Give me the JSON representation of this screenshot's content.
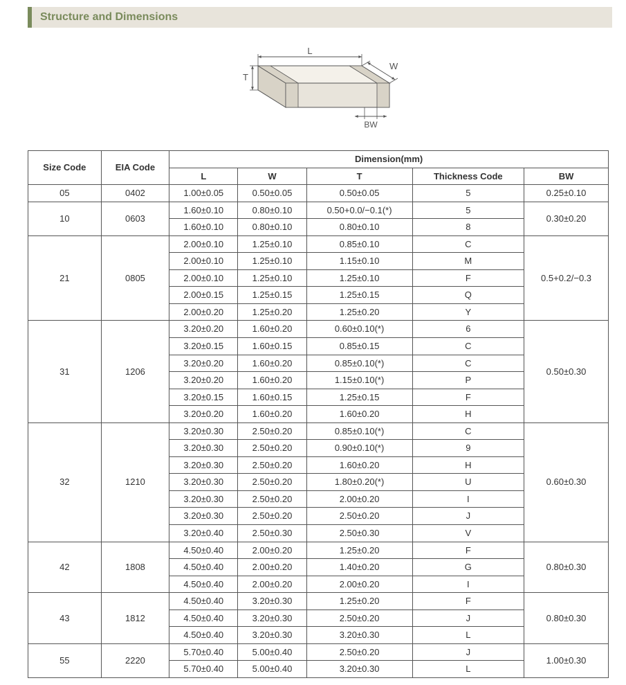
{
  "title": "Structure and Dimensions",
  "diagram": {
    "labels": {
      "L": "L",
      "W": "W",
      "T": "T",
      "BW": "BW"
    },
    "stroke": "#555555",
    "fill_top": "#f4f1ea",
    "fill_front": "#e8e4db",
    "fill_side": "#d8d3c7",
    "arrow_color": "#555555",
    "label_color": "#555555"
  },
  "headers": {
    "size": "Size Code",
    "eia": "EIA Code",
    "dim": "Dimension(mm)",
    "L": "L",
    "W": "W",
    "T": "T",
    "thick": "Thickness Code",
    "BW": "BW"
  },
  "groups": [
    {
      "size": "05",
      "eia": "0402",
      "bw": "0.25±0.10",
      "rows": [
        {
          "L": "1.00±0.05",
          "W": "0.50±0.05",
          "T": "0.50±0.05",
          "tc": "5"
        }
      ]
    },
    {
      "size": "10",
      "eia": "0603",
      "bw": "0.30±0.20",
      "rows": [
        {
          "L": "1.60±0.10",
          "W": "0.80±0.10",
          "T": "0.50+0.0/−0.1(*)",
          "tc": "5"
        },
        {
          "L": "1.60±0.10",
          "W": "0.80±0.10",
          "T": "0.80±0.10",
          "tc": "8"
        }
      ]
    },
    {
      "size": "21",
      "eia": "0805",
      "bw": "0.5+0.2/−0.3",
      "rows": [
        {
          "L": "2.00±0.10",
          "W": "1.25±0.10",
          "T": "0.85±0.10",
          "tc": "C"
        },
        {
          "L": "2.00±0.10",
          "W": "1.25±0.10",
          "T": "1.15±0.10",
          "tc": "M"
        },
        {
          "L": "2.00±0.10",
          "W": "1.25±0.10",
          "T": "1.25±0.10",
          "tc": "F"
        },
        {
          "L": "2.00±0.15",
          "W": "1.25±0.15",
          "T": "1.25±0.15",
          "tc": "Q"
        },
        {
          "L": "2.00±0.20",
          "W": "1.25±0.20",
          "T": "1.25±0.20",
          "tc": "Y"
        }
      ]
    },
    {
      "size": "31",
      "eia": "1206",
      "bw": "0.50±0.30",
      "rows": [
        {
          "L": "3.20±0.20",
          "W": "1.60±0.20",
          "T": "0.60±0.10(*)",
          "tc": "6"
        },
        {
          "L": "3.20±0.15",
          "W": "1.60±0.15",
          "T": "0.85±0.15",
          "tc": "C"
        },
        {
          "L": "3.20±0.20",
          "W": "1.60±0.20",
          "T": "0.85±0.10(*)",
          "tc": "C"
        },
        {
          "L": "3.20±0.20",
          "W": "1.60±0.20",
          "T": "1.15±0.10(*)",
          "tc": "P"
        },
        {
          "L": "3.20±0.15",
          "W": "1.60±0.15",
          "T": "1.25±0.15",
          "tc": "F"
        },
        {
          "L": "3.20±0.20",
          "W": "1.60±0.20",
          "T": "1.60±0.20",
          "tc": "H"
        }
      ]
    },
    {
      "size": "32",
      "eia": "1210",
      "bw": "0.60±0.30",
      "rows": [
        {
          "L": "3.20±0.30",
          "W": "2.50±0.20",
          "T": "0.85±0.10(*)",
          "tc": "C"
        },
        {
          "L": "3.20±0.30",
          "W": "2.50±0.20",
          "T": "0.90±0.10(*)",
          "tc": "9"
        },
        {
          "L": "3.20±0.30",
          "W": "2.50±0.20",
          "T": "1.60±0.20",
          "tc": "H"
        },
        {
          "L": "3.20±0.30",
          "W": "2.50±0.20",
          "T": "1.80±0.20(*)",
          "tc": "U"
        },
        {
          "L": "3.20±0.30",
          "W": "2.50±0.20",
          "T": "2.00±0.20",
          "tc": "I"
        },
        {
          "L": "3.20±0.30",
          "W": "2.50±0.20",
          "T": "2.50±0.20",
          "tc": "J"
        },
        {
          "L": "3.20±0.40",
          "W": "2.50±0.30",
          "T": "2.50±0.30",
          "tc": "V"
        }
      ]
    },
    {
      "size": "42",
      "eia": "1808",
      "bw": "0.80±0.30",
      "rows": [
        {
          "L": "4.50±0.40",
          "W": "2.00±0.20",
          "T": "1.25±0.20",
          "tc": "F"
        },
        {
          "L": "4.50±0.40",
          "W": "2.00±0.20",
          "T": "1.40±0.20",
          "tc": "G"
        },
        {
          "L": "4.50±0.40",
          "W": "2.00±0.20",
          "T": "2.00±0.20",
          "tc": "I"
        }
      ]
    },
    {
      "size": "43",
      "eia": "1812",
      "bw": "0.80±0.30",
      "rows": [
        {
          "L": "4.50±0.40",
          "W": "3.20±0.30",
          "T": "1.25±0.20",
          "tc": "F"
        },
        {
          "L": "4.50±0.40",
          "W": "3.20±0.30",
          "T": "2.50±0.20",
          "tc": "J"
        },
        {
          "L": "4.50±0.40",
          "W": "3.20±0.30",
          "T": "3.20±0.30",
          "tc": "L"
        }
      ]
    },
    {
      "size": "55",
      "eia": "2220",
      "bw": "1.00±0.30",
      "rows": [
        {
          "L": "5.70±0.40",
          "W": "5.00±0.40",
          "T": "2.50±0.20",
          "tc": "J"
        },
        {
          "L": "5.70±0.40",
          "W": "5.00±0.40",
          "T": "3.20±0.30",
          "tc": "L"
        }
      ]
    }
  ]
}
